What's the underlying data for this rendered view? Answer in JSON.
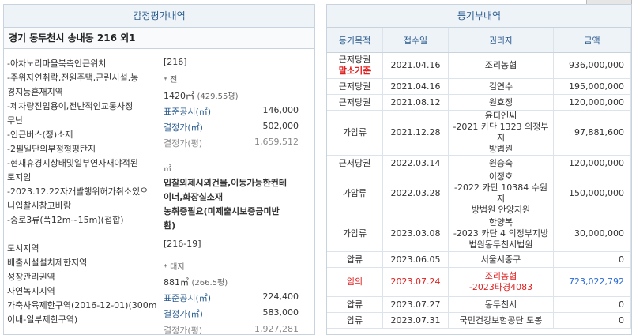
{
  "left": {
    "title": "감정평가내역",
    "address": "경기 동두천시 송내동 216 외1",
    "text_lines": [
      "-아차노리마을북측인근위치",
      "-주위자연취락,전원주택,근린시설,농",
      "경지등혼재지역",
      "-제차량진입용이,전반적인교통사정",
      "무난",
      "-인근버스(정)소재",
      "-2필일단의부정형평탄지",
      "-현재휴경지상태및일부연자재야적된",
      "토지임",
      "-2023.12.22자개발행위허가취소있으",
      "니입찰시참고바람",
      "-중로3류(폭12m~15m)(접합)",
      "도시지역",
      "배출시설설치제한지역",
      "성장관리권역",
      "자연녹지지역",
      "가축사육제한구역(2016-12-01)(300m",
      "이내-일부제한구역)",
      "<216>"
    ],
    "lot1": {
      "no": "[216]",
      "type": "* 전",
      "area": "1420㎡",
      "area_py": "(429.55평)",
      "std_label": "표준공시(㎡)",
      "std_value": "146,000",
      "dec_label": "결정가(㎡)",
      "dec_value": "502,000",
      "decpy_label": "결정가(평)",
      "decpy_value": "1,659,512",
      "unit": "㎡",
      "note": [
        "입찰외제시외건물,이동가능한컨테",
        "이너,화장실소재",
        "농취증필요(미제출시보증금미반",
        "환)"
      ]
    },
    "lot2": {
      "no": "[216-19]",
      "type": "* 대지",
      "area": "881㎡",
      "area_py": "(266.5평)",
      "std_label": "표준공시(㎡)",
      "std_value": "224,400",
      "dec_label": "결정가(㎡)",
      "dec_value": "583,000",
      "decpy_label": "결정가(평)",
      "decpy_value": "1,927,281"
    }
  },
  "right": {
    "title": "등기부내역",
    "headers": [
      "등기목적",
      "접수일",
      "권리자",
      "금액"
    ],
    "rows": [
      {
        "purpose": "근저당권",
        "tag": "말소기준",
        "date": "2021.04.16",
        "holder": [
          "조리농협"
        ],
        "amount": "936,000,000",
        "style": "normal"
      },
      {
        "purpose": "근저당권",
        "tag": "",
        "date": "2021.04.16",
        "holder": [
          "김연수"
        ],
        "amount": "195,000,000",
        "style": "normal"
      },
      {
        "purpose": "근저당권",
        "tag": "",
        "date": "2021.08.12",
        "holder": [
          "원효정"
        ],
        "amount": "120,000,000",
        "style": "normal"
      },
      {
        "purpose": "가압류",
        "tag": "",
        "date": "2021.12.28",
        "holder": [
          "윤디엔씨",
          "-2021 카단 1323 의정부지",
          "방법원"
        ],
        "amount": "97,881,600",
        "style": "normal"
      },
      {
        "purpose": "근저당권",
        "tag": "",
        "date": "2022.03.14",
        "holder": [
          "원승숙"
        ],
        "amount": "120,000,000",
        "style": "normal"
      },
      {
        "purpose": "가압류",
        "tag": "",
        "date": "2022.03.28",
        "holder": [
          "이정호",
          "-2022 카단 10384 수원지",
          "방법원 안양지원"
        ],
        "amount": "150,000,000",
        "style": "normal"
      },
      {
        "purpose": "가압류",
        "tag": "",
        "date": "2023.03.08",
        "holder": [
          "한양복",
          "-2023 카단 4 의정부지방",
          "법원동두천시법원"
        ],
        "amount": "30,000,000",
        "style": "normal"
      },
      {
        "purpose": "압류",
        "tag": "",
        "date": "2023.06.05",
        "holder": [
          "서울시중구"
        ],
        "amount": "0",
        "style": "normal"
      },
      {
        "purpose": "임의",
        "tag": "",
        "date": "2023.07.24",
        "holder": [
          "조리농협",
          "-2023타경4083"
        ],
        "amount": "723,022,792",
        "style": "highlight"
      },
      {
        "purpose": "압류",
        "tag": "",
        "date": "2023.07.27",
        "holder": [
          "동두천시"
        ],
        "amount": "0",
        "style": "normal"
      },
      {
        "purpose": "압류",
        "tag": "",
        "date": "2023.07.31",
        "holder": [
          "국민건강보험공단 도봉"
        ],
        "amount": "0",
        "style": "normal"
      }
    ]
  }
}
